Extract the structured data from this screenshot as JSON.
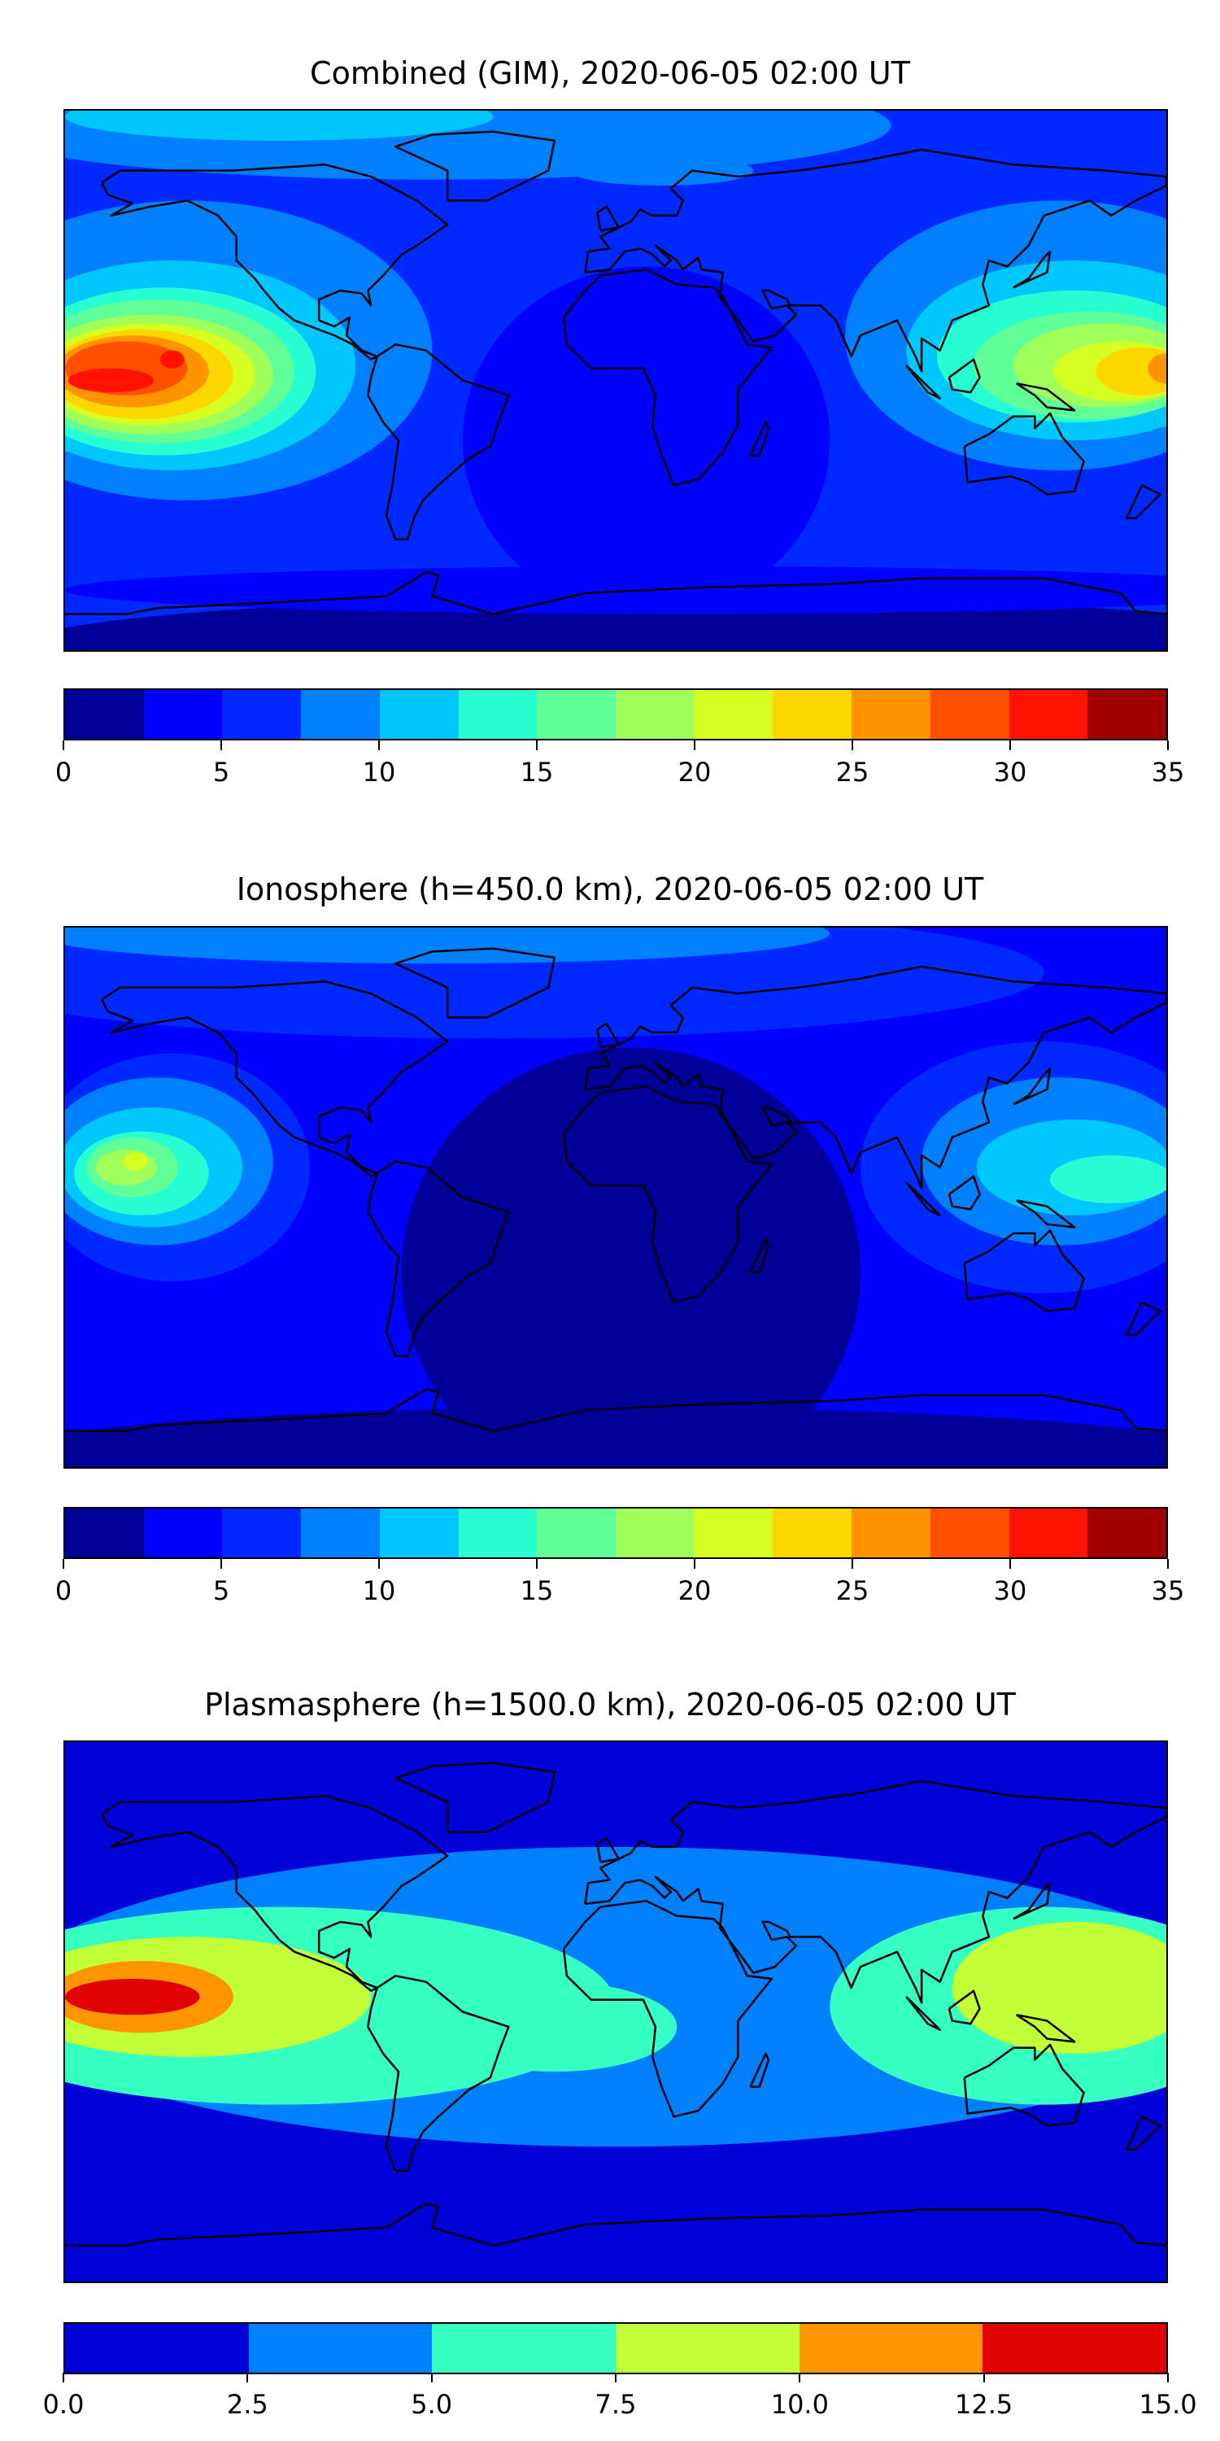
{
  "chart_data": [
    {
      "type": "heatmap",
      "title": "Combined (GIM), 2020-06-05 02:00 UT",
      "levels": [
        0,
        2.5,
        5,
        7.5,
        10,
        12.5,
        15,
        17.5,
        20,
        22.5,
        25,
        27.5,
        30,
        32.5,
        35
      ],
      "colors": [
        "#000099",
        "#0000ff",
        "#0029ff",
        "#0080ff",
        "#00c8ff",
        "#26ffd2",
        "#60ff98",
        "#a0ff58",
        "#d6ff22",
        "#ffd700",
        "#ff9400",
        "#ff5000",
        "#ff1300",
        "#a00000"
      ],
      "tick_labels": [
        "0",
        "5",
        "10",
        "15",
        "20",
        "25",
        "30",
        "35"
      ],
      "tick_values": [
        0,
        5,
        10,
        15,
        20,
        25,
        30,
        35
      ],
      "background_level": 2,
      "contour_regions": [
        {
          "level": 0,
          "lon": 20,
          "lat": -90,
          "rlon": 220,
          "rlat": 18
        },
        {
          "level": 1,
          "lon": 10,
          "lat": -20,
          "rlon": 60,
          "rlat": 58
        },
        {
          "level": 1,
          "lon": 20,
          "lat": -70,
          "rlon": 200,
          "rlat": 8
        },
        {
          "level": 3,
          "lon": -60,
          "lat": 85,
          "rlon": 150,
          "rlat": 18
        },
        {
          "level": 3,
          "lon": -140,
          "lat": 10,
          "rlon": 80,
          "rlat": 50
        },
        {
          "level": 3,
          "lon": 145,
          "lat": 15,
          "rlon": 70,
          "rlat": 45
        },
        {
          "level": 3,
          "lon": 15,
          "lat": 70,
          "rlon": 30,
          "rlat": 5
        },
        {
          "level": 4,
          "lon": -110,
          "lat": 88,
          "rlon": 70,
          "rlat": 8
        },
        {
          "level": 4,
          "lon": -145,
          "lat": 5,
          "rlon": 60,
          "rlat": 35
        },
        {
          "level": 4,
          "lon": 150,
          "lat": 10,
          "rlon": 55,
          "rlat": 30
        },
        {
          "level": 5,
          "lon": -148,
          "lat": 3,
          "rlon": 50,
          "rlat": 28
        },
        {
          "level": 5,
          "lon": 150,
          "lat": 8,
          "rlon": 45,
          "rlat": 22
        },
        {
          "level": 6,
          "lon": -150,
          "lat": 3,
          "rlon": 45,
          "rlat": 24
        },
        {
          "level": 6,
          "lon": 155,
          "lat": 5,
          "rlon": 38,
          "rlat": 18
        },
        {
          "level": 7,
          "lon": -152,
          "lat": 2,
          "rlon": 40,
          "rlat": 20
        },
        {
          "level": 7,
          "lon": 160,
          "lat": 5,
          "rlon": 30,
          "rlat": 14
        },
        {
          "level": 8,
          "lon": -153,
          "lat": 2,
          "rlon": 35,
          "rlat": 17
        },
        {
          "level": 8,
          "lon": 165,
          "lat": 3,
          "rlon": 22,
          "rlat": 10
        },
        {
          "level": 9,
          "lon": -155,
          "lat": 2,
          "rlon": 30,
          "rlat": 15
        },
        {
          "level": 9,
          "lon": 172,
          "lat": 3,
          "rlon": 15,
          "rlat": 8
        },
        {
          "level": 10,
          "lon": -158,
          "lat": 3,
          "rlon": 25,
          "rlat": 12
        },
        {
          "level": 10,
          "lon": 180,
          "lat": 4,
          "rlon": 6,
          "rlat": 5
        },
        {
          "level": 11,
          "lon": -160,
          "lat": 4,
          "rlon": 20,
          "rlat": 9
        },
        {
          "level": 12,
          "lon": -165,
          "lat": 0,
          "rlon": 14,
          "rlat": 4
        },
        {
          "level": 12,
          "lon": -145,
          "lat": 7,
          "rlon": 4,
          "rlat": 3
        }
      ]
    },
    {
      "type": "heatmap",
      "title": "Ionosphere  (h=450.0 km), 2020-06-05 02:00 UT",
      "levels": [
        0,
        2.5,
        5,
        7.5,
        10,
        12.5,
        15,
        17.5,
        20,
        22.5,
        25,
        27.5,
        30,
        32.5,
        35
      ],
      "colors": [
        "#000099",
        "#0000ff",
        "#0029ff",
        "#0080ff",
        "#00c8ff",
        "#26ffd2",
        "#60ff98",
        "#a0ff58",
        "#d6ff22",
        "#ffd700",
        "#ff9400",
        "#ff5000",
        "#ff1300",
        "#a00000"
      ],
      "tick_labels": [
        "0",
        "5",
        "10",
        "15",
        "20",
        "25",
        "30",
        "35"
      ],
      "tick_values": [
        0,
        5,
        10,
        15,
        20,
        25,
        30,
        35
      ],
      "background_level": 1,
      "contour_regions": [
        {
          "level": 0,
          "lon": 5,
          "lat": -25,
          "rlon": 75,
          "rlat": 75
        },
        {
          "level": 0,
          "lon": 0,
          "lat": -90,
          "rlon": 220,
          "rlat": 20
        },
        {
          "level": 2,
          "lon": -40,
          "lat": 75,
          "rlon": 180,
          "rlat": 22
        },
        {
          "level": 2,
          "lon": -145,
          "lat": 10,
          "rlon": 45,
          "rlat": 38
        },
        {
          "level": 2,
          "lon": 140,
          "lat": 10,
          "rlon": 60,
          "rlat": 42
        },
        {
          "level": 3,
          "lon": -60,
          "lat": 88,
          "rlon": 130,
          "rlat": 10
        },
        {
          "level": 3,
          "lon": -150,
          "lat": 12,
          "rlon": 38,
          "rlat": 28
        },
        {
          "level": 3,
          "lon": 145,
          "lat": 12,
          "rlon": 45,
          "rlat": 28
        },
        {
          "level": 4,
          "lon": -152,
          "lat": 10,
          "rlon": 30,
          "rlat": 20
        },
        {
          "level": 4,
          "lon": 150,
          "lat": 10,
          "rlon": 32,
          "rlat": 16
        },
        {
          "level": 5,
          "lon": -155,
          "lat": 8,
          "rlon": 22,
          "rlat": 14
        },
        {
          "level": 5,
          "lon": 162,
          "lat": 6,
          "rlon": 20,
          "rlat": 8
        },
        {
          "level": 6,
          "lon": -158,
          "lat": 10,
          "rlon": 15,
          "rlat": 10
        },
        {
          "level": 7,
          "lon": -160,
          "lat": 10,
          "rlon": 10,
          "rlat": 6
        },
        {
          "level": 8,
          "lon": -157,
          "lat": 12,
          "rlon": 4,
          "rlat": 3
        }
      ]
    },
    {
      "type": "heatmap",
      "title": "Plasmasphere (h=1500.0 km), 2020-06-05 02:00 UT",
      "levels": [
        0.0,
        2.5,
        5.0,
        7.5,
        10.0,
        12.5,
        15.0
      ],
      "colors": [
        "#0000d8",
        "#0080ff",
        "#36ffc2",
        "#c2ff36",
        "#ff9500",
        "#e00000"
      ],
      "tick_labels": [
        "0.0",
        "2.5",
        "5.0",
        "7.5",
        "10.0",
        "12.5",
        "15.0"
      ],
      "tick_values": [
        0,
        2.5,
        5,
        7.5,
        10,
        12.5,
        15
      ],
      "background_level": 0,
      "contour_regions": [
        {
          "level": 1,
          "lon": 0,
          "lat": 5,
          "rlon": 200,
          "rlat": 50
        },
        {
          "level": 2,
          "lon": -110,
          "lat": 2,
          "rlon": 110,
          "rlat": 33
        },
        {
          "level": 2,
          "lon": 140,
          "lat": 2,
          "rlon": 70,
          "rlat": 33
        },
        {
          "level": 2,
          "lon": -20,
          "lat": -5,
          "rlon": 40,
          "rlat": 15
        },
        {
          "level": 3,
          "lon": -140,
          "lat": 5,
          "rlon": 60,
          "rlat": 20
        },
        {
          "level": 3,
          "lon": 150,
          "lat": 8,
          "rlon": 40,
          "rlat": 22
        },
        {
          "level": 4,
          "lon": -155,
          "lat": 5,
          "rlon": 30,
          "rlat": 12
        },
        {
          "level": 5,
          "lon": -158,
          "lat": 5,
          "rlon": 22,
          "rlat": 6
        }
      ]
    }
  ]
}
